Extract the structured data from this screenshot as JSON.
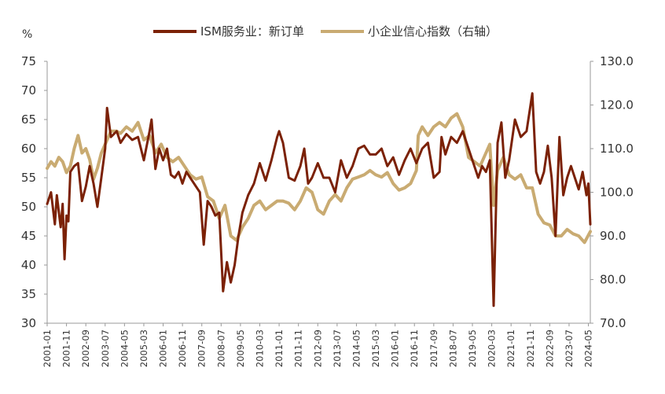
{
  "chart_data": {
    "type": "line",
    "left_unit": "%",
    "left_axis": {
      "min": 30,
      "max": 75,
      "ticks": [
        "30",
        "35",
        "40",
        "45",
        "50",
        "55",
        "60",
        "65",
        "70",
        "75"
      ]
    },
    "right_axis": {
      "min": 70,
      "max": 130,
      "ticks": [
        "70.0",
        "80.0",
        "90.0",
        "100.0",
        "110.0",
        "120.0",
        "130.0"
      ]
    },
    "x_range": [
      "2001-01",
      "2024-06"
    ],
    "x_tick_labels": [
      "2001-01",
      "2001-11",
      "2002-09",
      "2003-07",
      "2004-05",
      "2005-03",
      "2006-01",
      "2006-11",
      "2007-09",
      "2008-07",
      "2009-05",
      "2010-03",
      "2011-01",
      "2011-11",
      "2012-09",
      "2013-07",
      "2014-05",
      "2015-03",
      "2016-01",
      "2016-11",
      "2017-09",
      "2018-07",
      "2019-05",
      "2020-03",
      "2021-01",
      "2021-11",
      "2022-09",
      "2023-07",
      "2024-05"
    ],
    "legend_position": "top",
    "grid": false,
    "series": [
      {
        "name": "ISM服务业：新订单",
        "axis": "left",
        "color": "#7B2106",
        "points": [
          [
            "2001-01",
            50.5
          ],
          [
            "2001-03",
            52.5
          ],
          [
            "2001-05",
            47
          ],
          [
            "2001-06",
            52
          ],
          [
            "2001-08",
            46.5
          ],
          [
            "2001-09",
            50.5
          ],
          [
            "2001-10",
            41
          ],
          [
            "2001-11",
            48.5
          ],
          [
            "2001-12",
            47.5
          ],
          [
            "2002-01",
            56
          ],
          [
            "2002-03",
            57
          ],
          [
            "2002-05",
            57.5
          ],
          [
            "2002-07",
            51
          ],
          [
            "2002-09",
            53.5
          ],
          [
            "2002-11",
            57
          ],
          [
            "2003-01",
            54
          ],
          [
            "2003-03",
            50
          ],
          [
            "2003-05",
            55
          ],
          [
            "2003-07",
            60
          ],
          [
            "2003-08",
            67
          ],
          [
            "2003-10",
            62
          ],
          [
            "2004-01",
            63
          ],
          [
            "2004-03",
            61
          ],
          [
            "2004-06",
            62.5
          ],
          [
            "2004-09",
            61.5
          ],
          [
            "2004-12",
            62
          ],
          [
            "2005-03",
            58
          ],
          [
            "2005-06",
            63
          ],
          [
            "2005-07",
            65
          ],
          [
            "2005-09",
            56.5
          ],
          [
            "2005-11",
            60
          ],
          [
            "2006-01",
            58
          ],
          [
            "2006-03",
            60
          ],
          [
            "2006-05",
            55.5
          ],
          [
            "2006-07",
            55
          ],
          [
            "2006-09",
            56
          ],
          [
            "2006-11",
            54
          ],
          [
            "2007-01",
            56
          ],
          [
            "2007-03",
            55
          ],
          [
            "2007-06",
            53.5
          ],
          [
            "2007-08",
            52.5
          ],
          [
            "2007-10",
            43.5
          ],
          [
            "2007-12",
            51
          ],
          [
            "2008-02",
            50
          ],
          [
            "2008-04",
            48.5
          ],
          [
            "2008-06",
            49
          ],
          [
            "2008-08",
            35.5
          ],
          [
            "2008-10",
            40.5
          ],
          [
            "2008-12",
            37
          ],
          [
            "2009-02",
            40
          ],
          [
            "2009-04",
            45
          ],
          [
            "2009-06",
            49
          ],
          [
            "2009-09",
            52
          ],
          [
            "2009-12",
            54
          ],
          [
            "2010-03",
            57.5
          ],
          [
            "2010-06",
            54.5
          ],
          [
            "2010-09",
            58
          ],
          [
            "2010-12",
            62
          ],
          [
            "2011-01",
            63
          ],
          [
            "2011-03",
            61
          ],
          [
            "2011-06",
            55
          ],
          [
            "2011-09",
            54.5
          ],
          [
            "2011-12",
            57
          ],
          [
            "2012-02",
            60
          ],
          [
            "2012-04",
            54
          ],
          [
            "2012-06",
            55
          ],
          [
            "2012-09",
            57.5
          ],
          [
            "2012-12",
            55
          ],
          [
            "2013-03",
            55
          ],
          [
            "2013-06",
            52.5
          ],
          [
            "2013-09",
            58
          ],
          [
            "2013-12",
            55
          ],
          [
            "2014-03",
            57
          ],
          [
            "2014-06",
            60
          ],
          [
            "2014-09",
            60.5
          ],
          [
            "2014-12",
            59
          ],
          [
            "2015-03",
            59
          ],
          [
            "2015-06",
            60
          ],
          [
            "2015-09",
            57
          ],
          [
            "2015-12",
            58.5
          ],
          [
            "2016-03",
            55.5
          ],
          [
            "2016-06",
            58
          ],
          [
            "2016-09",
            60
          ],
          [
            "2016-12",
            57.5
          ],
          [
            "2017-03",
            60
          ],
          [
            "2017-06",
            61
          ],
          [
            "2017-09",
            55
          ],
          [
            "2017-12",
            56
          ],
          [
            "2018-01",
            62
          ],
          [
            "2018-03",
            59
          ],
          [
            "2018-06",
            62
          ],
          [
            "2018-09",
            61
          ],
          [
            "2018-12",
            63
          ],
          [
            "2019-02",
            61
          ],
          [
            "2019-05",
            58
          ],
          [
            "2019-08",
            55
          ],
          [
            "2019-10",
            57
          ],
          [
            "2019-12",
            56
          ],
          [
            "2020-02",
            58
          ],
          [
            "2020-04",
            33
          ],
          [
            "2020-06",
            61
          ],
          [
            "2020-08",
            64.5
          ],
          [
            "2020-10",
            55
          ],
          [
            "2020-12",
            58
          ],
          [
            "2021-03",
            65
          ],
          [
            "2021-06",
            62
          ],
          [
            "2021-09",
            63
          ],
          [
            "2021-12",
            69.5
          ],
          [
            "2022-02",
            56
          ],
          [
            "2022-04",
            54
          ],
          [
            "2022-06",
            56
          ],
          [
            "2022-08",
            60.5
          ],
          [
            "2022-10",
            55
          ],
          [
            "2022-12",
            45
          ],
          [
            "2023-02",
            62
          ],
          [
            "2023-04",
            52
          ],
          [
            "2023-06",
            55
          ],
          [
            "2023-08",
            57
          ],
          [
            "2023-10",
            55
          ],
          [
            "2023-12",
            53
          ],
          [
            "2024-02",
            56
          ],
          [
            "2024-04",
            52
          ],
          [
            "2024-05",
            54
          ],
          [
            "2024-06",
            47
          ]
        ]
      },
      {
        "name": "小企业信心指数（右轴）",
        "axis": "right",
        "color": "#C9AB72",
        "points": [
          [
            "2001-01",
            105.5
          ],
          [
            "2001-03",
            107
          ],
          [
            "2001-05",
            106
          ],
          [
            "2001-07",
            108
          ],
          [
            "2001-09",
            107
          ],
          [
            "2001-11",
            104.5
          ],
          [
            "2002-01",
            106
          ],
          [
            "2002-03",
            110
          ],
          [
            "2002-05",
            113
          ],
          [
            "2002-07",
            109
          ],
          [
            "2002-09",
            110
          ],
          [
            "2002-11",
            107.5
          ],
          [
            "2003-01",
            103
          ],
          [
            "2003-03",
            105.5
          ],
          [
            "2003-05",
            109
          ],
          [
            "2003-07",
            111
          ],
          [
            "2003-10",
            114
          ],
          [
            "2004-01",
            114
          ],
          [
            "2004-03",
            113.5
          ],
          [
            "2004-06",
            115
          ],
          [
            "2004-09",
            114
          ],
          [
            "2004-12",
            116
          ],
          [
            "2005-03",
            112
          ],
          [
            "2005-06",
            113
          ],
          [
            "2005-09",
            109
          ],
          [
            "2005-12",
            111
          ],
          [
            "2006-03",
            108
          ],
          [
            "2006-06",
            107
          ],
          [
            "2006-09",
            108
          ],
          [
            "2006-12",
            106
          ],
          [
            "2007-03",
            104
          ],
          [
            "2007-06",
            103
          ],
          [
            "2007-09",
            103.5
          ],
          [
            "2007-12",
            99
          ],
          [
            "2008-03",
            98
          ],
          [
            "2008-06",
            94
          ],
          [
            "2008-09",
            97
          ],
          [
            "2008-12",
            90
          ],
          [
            "2009-03",
            89
          ],
          [
            "2009-06",
            92
          ],
          [
            "2009-09",
            94
          ],
          [
            "2009-12",
            97
          ],
          [
            "2010-03",
            98
          ],
          [
            "2010-06",
            96
          ],
          [
            "2010-09",
            97
          ],
          [
            "2010-12",
            98
          ],
          [
            "2011-03",
            98
          ],
          [
            "2011-06",
            97.5
          ],
          [
            "2011-09",
            96
          ],
          [
            "2011-12",
            98
          ],
          [
            "2012-03",
            101
          ],
          [
            "2012-06",
            100
          ],
          [
            "2012-09",
            96
          ],
          [
            "2012-12",
            95
          ],
          [
            "2013-03",
            98
          ],
          [
            "2013-06",
            99.5
          ],
          [
            "2013-09",
            98
          ],
          [
            "2013-12",
            101
          ],
          [
            "2014-03",
            103
          ],
          [
            "2014-06",
            103.5
          ],
          [
            "2014-09",
            104
          ],
          [
            "2014-12",
            105
          ],
          [
            "2015-03",
            104
          ],
          [
            "2015-06",
            103.5
          ],
          [
            "2015-09",
            104.5
          ],
          [
            "2015-12",
            102
          ],
          [
            "2016-03",
            100.5
          ],
          [
            "2016-06",
            101
          ],
          [
            "2016-09",
            102
          ],
          [
            "2016-12",
            105
          ],
          [
            "2017-01",
            113
          ],
          [
            "2017-03",
            115
          ],
          [
            "2017-06",
            113
          ],
          [
            "2017-09",
            115
          ],
          [
            "2017-12",
            116
          ],
          [
            "2018-03",
            115
          ],
          [
            "2018-06",
            117
          ],
          [
            "2018-09",
            118
          ],
          [
            "2018-12",
            115
          ],
          [
            "2019-03",
            108
          ],
          [
            "2019-06",
            107
          ],
          [
            "2019-09",
            106
          ],
          [
            "2019-12",
            109
          ],
          [
            "2020-02",
            111
          ],
          [
            "2020-04",
            97
          ],
          [
            "2020-06",
            105
          ],
          [
            "2020-09",
            108
          ],
          [
            "2020-12",
            104
          ],
          [
            "2021-03",
            103
          ],
          [
            "2021-06",
            104
          ],
          [
            "2021-09",
            101
          ],
          [
            "2021-12",
            101
          ],
          [
            "2022-03",
            95
          ],
          [
            "2022-06",
            93
          ],
          [
            "2022-09",
            92.5
          ],
          [
            "2022-12",
            90
          ],
          [
            "2023-03",
            90
          ],
          [
            "2023-06",
            91.5
          ],
          [
            "2023-09",
            90.5
          ],
          [
            "2023-12",
            90
          ],
          [
            "2024-03",
            88.5
          ],
          [
            "2024-06",
            91
          ]
        ]
      }
    ]
  }
}
